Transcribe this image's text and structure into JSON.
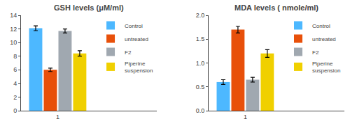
{
  "chart_data": [
    {
      "type": "bar",
      "title": "GSH levels (μM/ml)",
      "categories": [
        "1"
      ],
      "series": [
        {
          "name": "Control",
          "color": "#4db8ff",
          "values": [
            12.1
          ],
          "errors": [
            0.35
          ]
        },
        {
          "name": "untreated",
          "color": "#e8500a",
          "values": [
            6.0
          ],
          "errors": [
            0.25
          ]
        },
        {
          "name": "F2",
          "color": "#a0a8b0",
          "values": [
            11.7
          ],
          "errors": [
            0.3
          ]
        },
        {
          "name": "Piperine\nsuspension",
          "color": "#f0d000",
          "values": [
            8.4
          ],
          "errors": [
            0.4
          ]
        }
      ],
      "ylim": [
        0,
        14
      ],
      "yticks": [
        0,
        2,
        4,
        6,
        8,
        10,
        12,
        14
      ],
      "grid": false,
      "legend": "upper right"
    },
    {
      "type": "bar",
      "title": "MDA levels ( nmole/ml)",
      "categories": [
        "1"
      ],
      "series": [
        {
          "name": "Control",
          "color": "#4db8ff",
          "values": [
            0.6
          ],
          "errors": [
            0.05
          ]
        },
        {
          "name": "untreated",
          "color": "#e8500a",
          "values": [
            1.7
          ],
          "errors": [
            0.07
          ]
        },
        {
          "name": "F2",
          "color": "#a0a8b0",
          "values": [
            0.65
          ],
          "errors": [
            0.05
          ]
        },
        {
          "name": "Piperine\nsuspension",
          "color": "#f0d000",
          "values": [
            1.2
          ],
          "errors": [
            0.08
          ]
        }
      ],
      "ylim": [
        0,
        2
      ],
      "yticks": [
        {
          "value": 0,
          "label": "0.0"
        },
        0.5,
        {
          "value": 1.0,
          "label": "1.0"
        },
        1.5,
        {
          "value": 2.0,
          "label": "2.0"
        }
      ],
      "grid": false,
      "legend": "upper right"
    }
  ]
}
